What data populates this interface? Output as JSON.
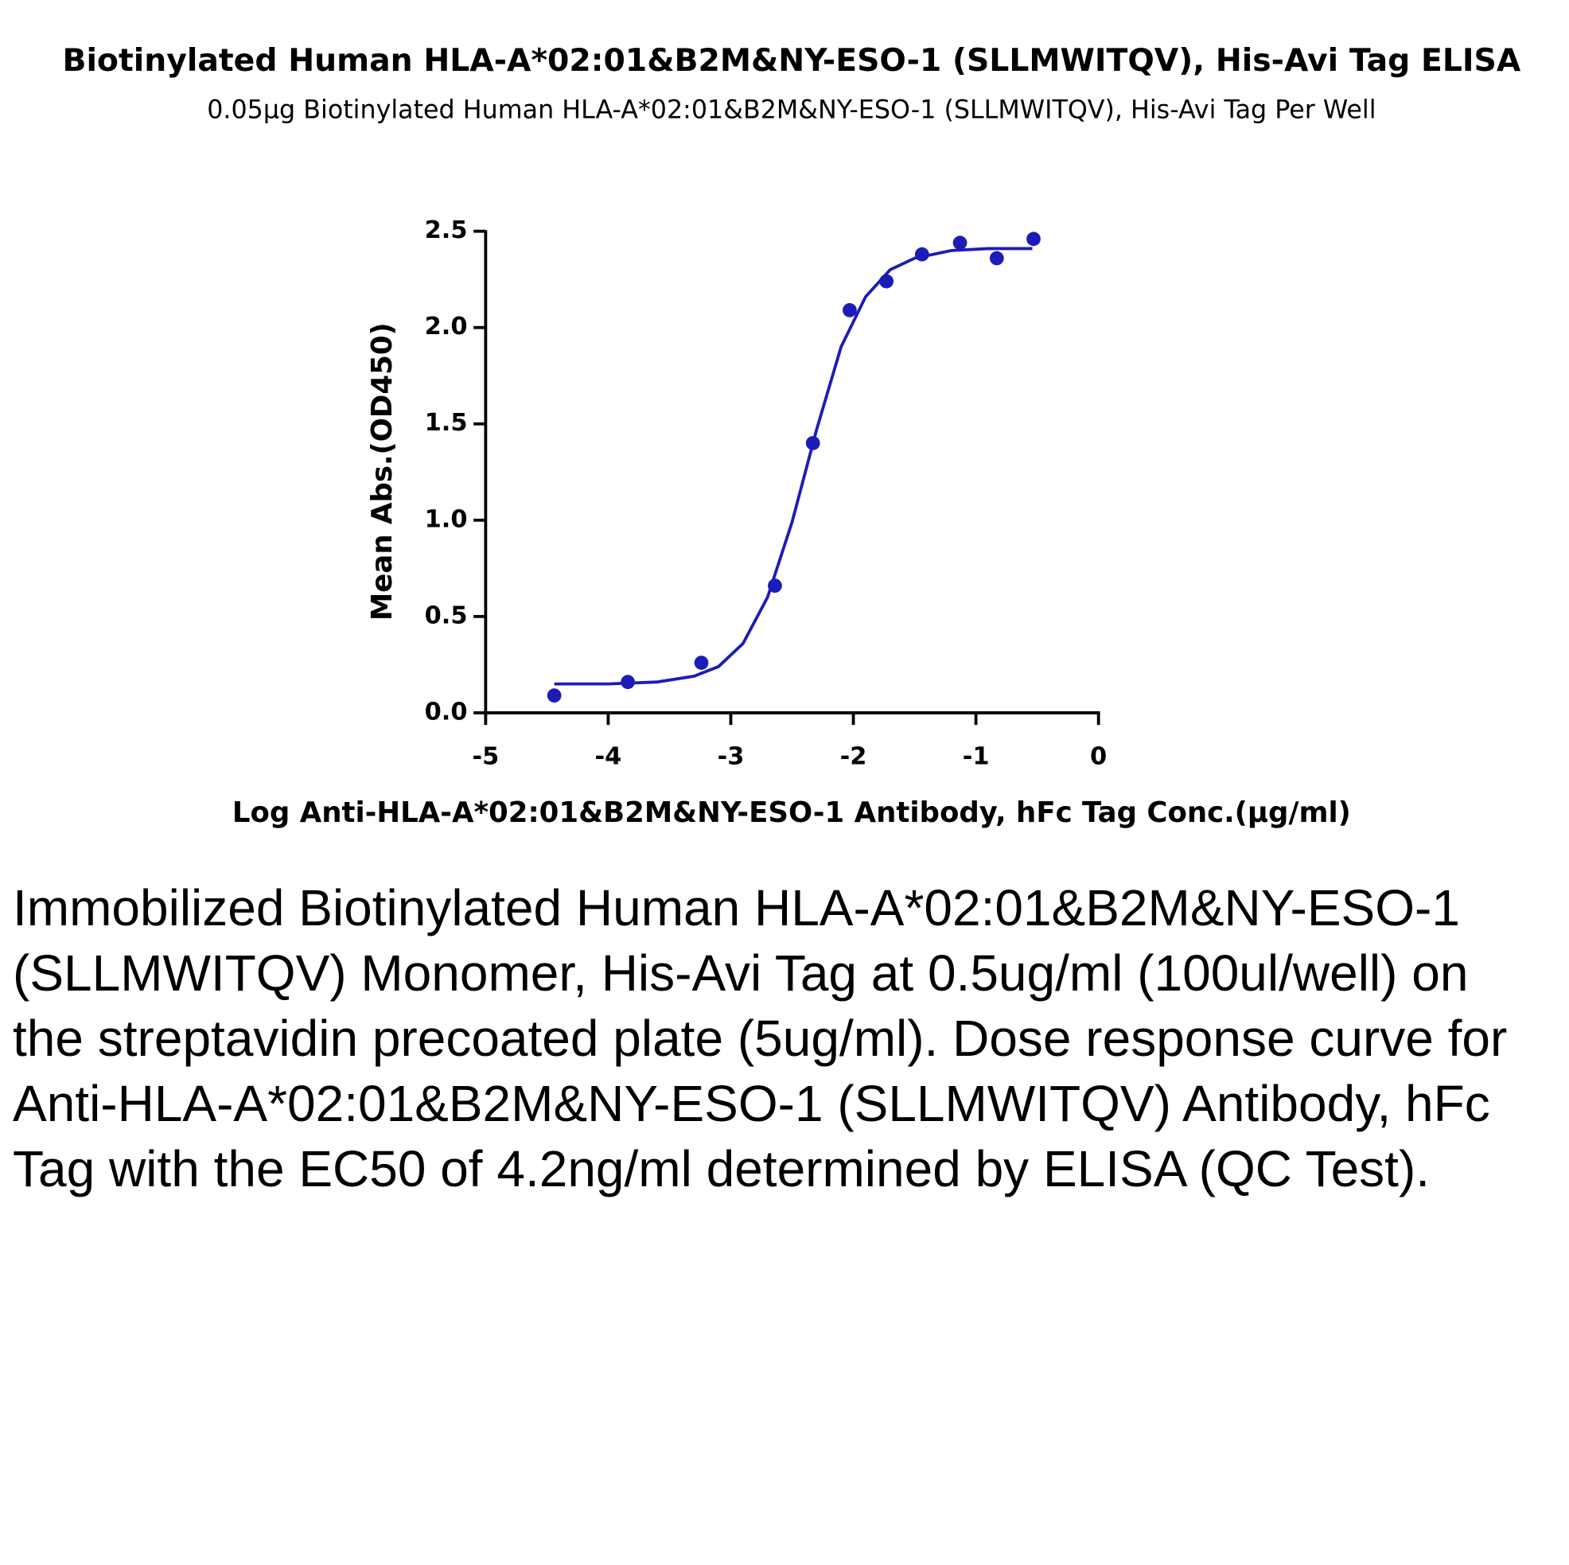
{
  "chart_data": {
    "type": "scatter",
    "title": "Biotinylated Human HLA-A*02:01&B2M&NY-ESO-1 (SLLMWITQV), His-Avi Tag ELISA",
    "subtitle": "0.05μg Biotinylated Human HLA-A*02:01&B2M&NY-ESO-1 (SLLMWITQV), His-Avi Tag Per Well",
    "x_label": "Log Anti-HLA-A*02:01&B2M&NY-ESO-1 Antibody, hFc Tag Conc.(μg/ml)",
    "y_label": "Mean Abs.(OD450)",
    "xlim": [
      -5,
      0
    ],
    "xticks": [
      -5,
      -4,
      -3,
      -2,
      -1,
      0
    ],
    "ylim": [
      0,
      2.5
    ],
    "yticks": [
      {
        "value": 0,
        "label": "0.0"
      },
      0.5,
      {
        "value": 1,
        "label": "1.0"
      },
      1.5,
      {
        "value": 2,
        "label": "2.0"
      },
      2.5
    ],
    "series": [
      {
        "type": "scatter",
        "color": "#1c1cb8",
        "x": [
          -4.44,
          -3.84,
          -3.24,
          -2.64,
          -2.33,
          -2.03,
          -1.73,
          -1.44,
          -1.13,
          -0.83,
          -0.53
        ],
        "values": [
          0.09,
          0.16,
          0.26,
          0.66,
          1.4,
          2.09,
          2.24,
          2.38,
          2.44,
          2.36,
          2.46
        ]
      },
      {
        "type": "line",
        "color": "#1c1cb8",
        "x": [
          -4.44,
          -4.0,
          -3.6,
          -3.3,
          -3.1,
          -2.9,
          -2.7,
          -2.5,
          -2.3,
          -2.1,
          -1.9,
          -1.7,
          -1.5,
          -1.2,
          -0.9,
          -0.54
        ],
        "values": [
          0.15,
          0.15,
          0.16,
          0.19,
          0.24,
          0.36,
          0.6,
          0.99,
          1.47,
          1.9,
          2.16,
          2.3,
          2.36,
          2.4,
          2.41,
          2.41
        ]
      }
    ]
  },
  "description": "Immobilized Biotinylated Human HLA-A*02:01&B2M&NY-ESO-1 (SLLMWITQV) Monomer, His-Avi Tag at 0.5ug/ml (100ul/well) on the streptavidin precoated plate (5ug/ml). Dose response curve for Anti-HLA-A*02:01&B2M&NY-ESO-1 (SLLMWITQV) Antibody, hFc Tag with the EC50 of 4.2ng/ml determined by ELISA (QC Test)."
}
